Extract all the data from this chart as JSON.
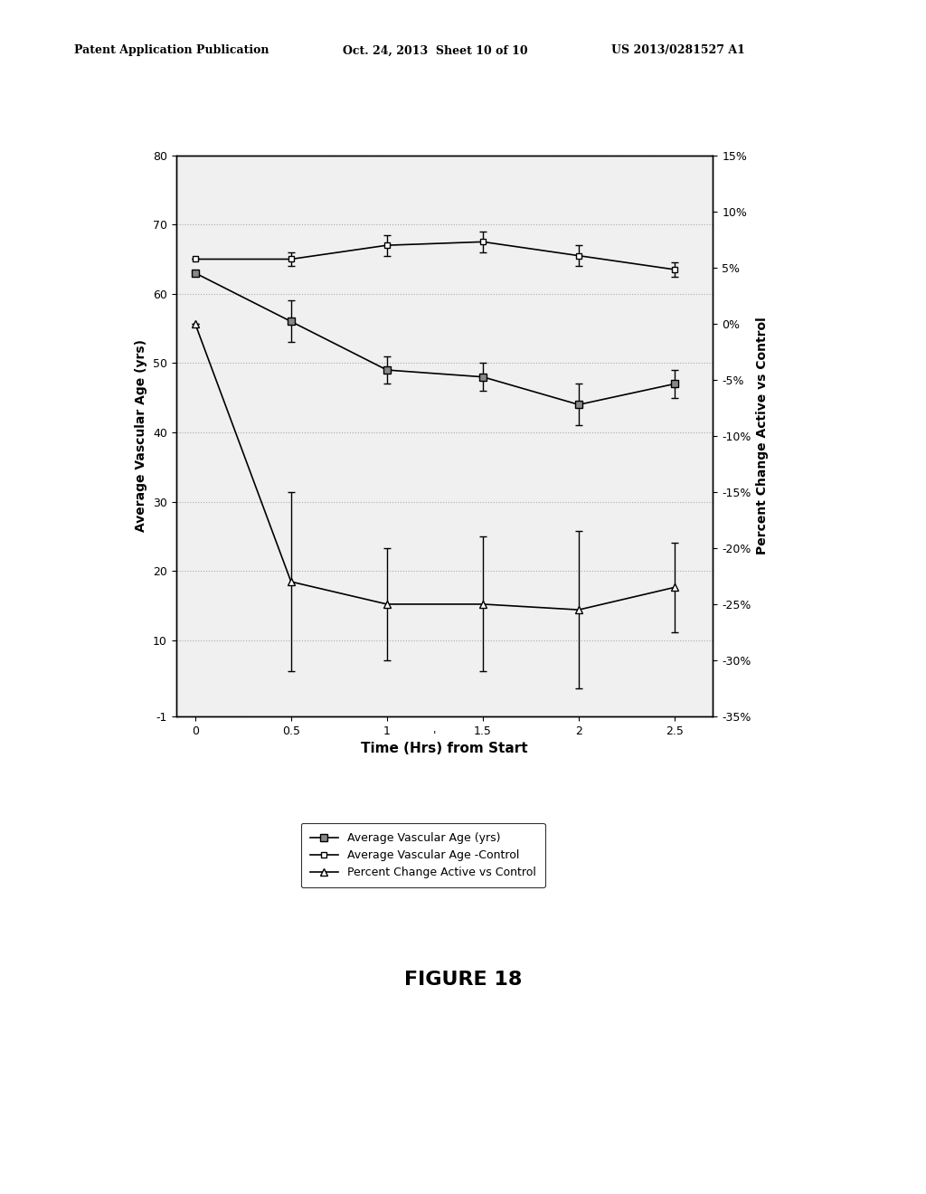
{
  "time": [
    0,
    0.5,
    1,
    1.5,
    2,
    2.5
  ],
  "vascular_age_active": [
    63,
    56,
    49,
    48,
    44,
    47
  ],
  "vascular_age_active_err": [
    0,
    3,
    2,
    2,
    3,
    2
  ],
  "vascular_age_control": [
    65,
    65,
    67,
    67.5,
    65.5,
    63.5
  ],
  "vascular_age_control_err": [
    0,
    1,
    1.5,
    1.5,
    1.5,
    1
  ],
  "pct_change": [
    0,
    -23,
    -25,
    -25,
    -25.5,
    -23.5
  ],
  "pct_change_err": [
    0,
    8,
    5,
    6,
    7,
    4
  ],
  "ylabel_left": "Average Vascular Age (yrs)",
  "ylabel_right": "Percent Change Active vs Control",
  "xlabel": "Time (Hrs) from Start",
  "ylim_left": [
    -1,
    80
  ],
  "ylim_right": [
    -35,
    15
  ],
  "yticks_left": [
    -1,
    10,
    20,
    30,
    40,
    50,
    60,
    70,
    80
  ],
  "yticks_right": [
    -35,
    -30,
    -25,
    -20,
    -15,
    -10,
    -5,
    0,
    5,
    10,
    15
  ],
  "xticks": [
    0,
    0.5,
    1,
    1.5,
    2,
    2.5
  ],
  "xticklabels": [
    "0",
    "0.5",
    "1",
    "1.5",
    "2",
    "2.5"
  ],
  "legend_labels": [
    "Average Vascular Age (yrs)",
    "Average Vascular Age -Control",
    "Percent Change Active vs Control"
  ],
  "header_left": "Patent Application Publication",
  "header_mid": "Oct. 24, 2013  Sheet 10 of 10",
  "header_right": "US 2013/0281527 A1",
  "figure_label": "FIGURE 18",
  "background_color": "#ffffff",
  "line_color": "#000000",
  "grid_color": "#aaaaaa"
}
